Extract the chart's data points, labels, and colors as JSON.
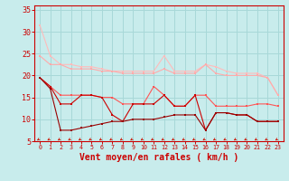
{
  "xlabel": "Vent moyen/en rafales ( km/h )",
  "xlim": [
    -0.5,
    23.5
  ],
  "ylim": [
    5,
    36
  ],
  "yticks": [
    5,
    10,
    15,
    20,
    25,
    30,
    35
  ],
  "xticks": [
    0,
    1,
    2,
    3,
    4,
    5,
    6,
    7,
    8,
    9,
    10,
    11,
    12,
    13,
    14,
    15,
    16,
    17,
    18,
    19,
    20,
    21,
    22,
    23
  ],
  "bg_color": "#c8ecec",
  "grid_color": "#a8d8d8",
  "line1_color": "#ffbbbb",
  "line2_color": "#ffaaaa",
  "line3_color": "#ff5555",
  "line4_color": "#cc0000",
  "line5_color": "#990000",
  "line1_y": [
    31.5,
    24.5,
    22.5,
    22.5,
    22.0,
    22.0,
    21.5,
    21.0,
    21.0,
    21.0,
    21.0,
    21.0,
    24.5,
    21.0,
    21.0,
    21.0,
    22.5,
    22.0,
    21.0,
    20.5,
    20.5,
    20.5,
    19.5,
    15.5
  ],
  "line2_y": [
    24.5,
    22.5,
    22.5,
    21.5,
    21.5,
    21.5,
    21.0,
    21.0,
    20.5,
    20.5,
    20.5,
    20.5,
    21.5,
    20.5,
    20.5,
    20.5,
    22.5,
    20.5,
    20.0,
    20.0,
    20.0,
    20.0,
    19.5,
    15.5
  ],
  "line3_y": [
    19.5,
    17.5,
    15.5,
    15.5,
    15.5,
    15.5,
    15.0,
    15.0,
    13.5,
    13.5,
    13.5,
    17.5,
    15.5,
    13.0,
    13.0,
    15.5,
    15.5,
    13.0,
    13.0,
    13.0,
    13.0,
    13.5,
    13.5,
    13.0
  ],
  "line4_y": [
    19.5,
    17.5,
    13.5,
    13.5,
    15.5,
    15.5,
    15.0,
    11.0,
    9.5,
    13.5,
    13.5,
    13.5,
    15.5,
    13.0,
    13.0,
    15.5,
    7.5,
    11.5,
    11.5,
    11.0,
    11.0,
    9.5,
    9.5,
    9.5
  ],
  "line5_y": [
    19.5,
    17.0,
    7.5,
    7.5,
    8.0,
    8.5,
    9.0,
    9.5,
    9.5,
    10.0,
    10.0,
    10.0,
    10.5,
    11.0,
    11.0,
    11.0,
    7.5,
    11.5,
    11.5,
    11.0,
    11.0,
    9.5,
    9.5,
    9.5
  ],
  "arrow_color": "#cc1100",
  "axis_color": "#cc0000",
  "tick_color": "#cc0000",
  "label_color": "#cc0000",
  "xlabel_fontsize": 7.0,
  "tick_fontsize": 6.0,
  "xtick_fontsize": 4.8
}
